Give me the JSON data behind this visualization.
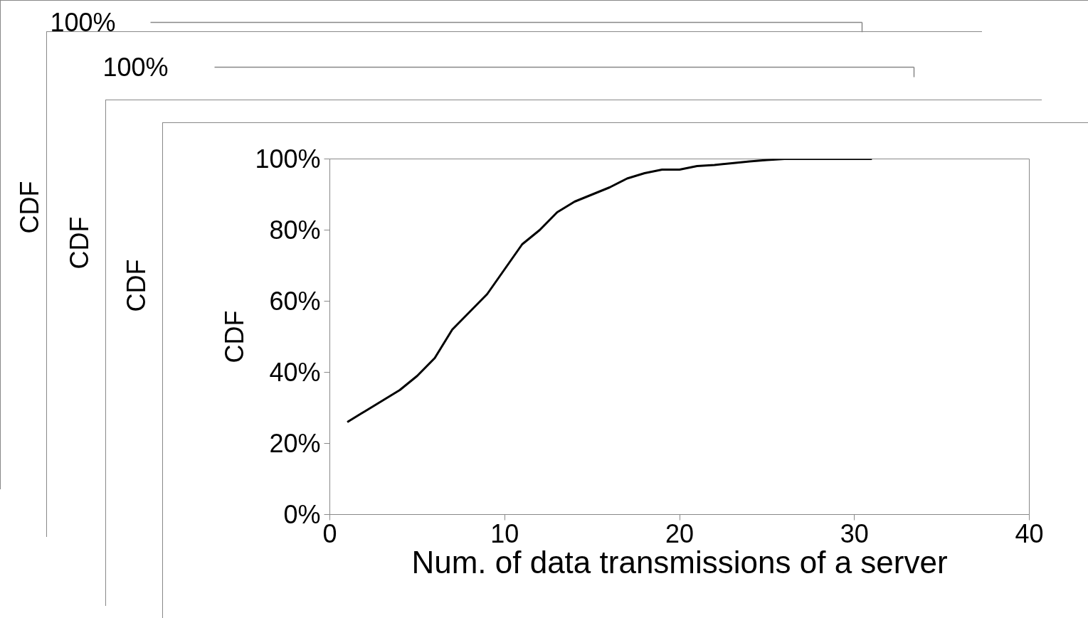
{
  "chart_data": [
    {
      "type": "other",
      "ylabel": "CDF",
      "annotations": [
        "100%"
      ]
    },
    {
      "type": "other",
      "ylabel": "CDF",
      "annotations": [
        "100%"
      ]
    },
    {
      "type": "other",
      "ylabel": "CDF"
    },
    {
      "type": "line",
      "xlabel": "Num. of data transmissions of a server",
      "ylabel": "CDF",
      "color": "#000000",
      "x": [
        1,
        2,
        3,
        4,
        5,
        6,
        7,
        8,
        9,
        10,
        11,
        12,
        13,
        14,
        15,
        16,
        17,
        18,
        19,
        20,
        21,
        22,
        23,
        24,
        25,
        26,
        28,
        31
      ],
      "values": [
        26,
        29,
        32,
        35,
        39,
        44,
        52,
        57,
        62,
        69,
        76,
        80,
        85,
        88,
        90,
        92,
        94.5,
        96,
        97,
        97,
        98,
        98.3,
        98.8,
        99.3,
        99.7,
        100,
        100,
        100
      ],
      "xlim": [
        0,
        40
      ],
      "xticks": [
        0,
        10,
        20,
        30,
        40
      ],
      "ylim": [
        0,
        100
      ],
      "yticks": [
        {
          "value": 0,
          "label": "0%"
        },
        {
          "value": 20,
          "label": "20%"
        },
        {
          "value": 40,
          "label": "40%"
        },
        {
          "value": 60,
          "label": "60%"
        },
        {
          "value": 80,
          "label": "80%"
        },
        {
          "value": 100,
          "label": "100%"
        }
      ],
      "grid": false,
      "marker": "none",
      "line_style": "solid"
    }
  ]
}
